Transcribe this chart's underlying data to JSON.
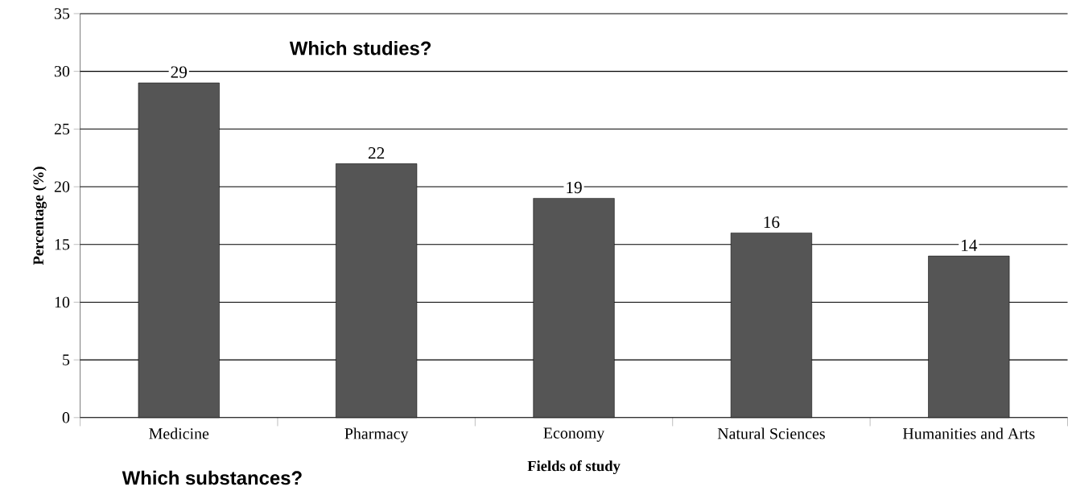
{
  "chart_data": {
    "type": "bar",
    "categories": [
      "Medicine",
      "Pharmacy",
      "Economy",
      "Natural Sciences",
      "Humanities and Arts"
    ],
    "values": [
      29,
      22,
      19,
      16,
      14
    ],
    "color": "#555555",
    "ylim": [
      0,
      35
    ],
    "yticks": [
      0,
      5,
      10,
      15,
      20,
      25,
      30,
      35
    ],
    "grid": "y",
    "data_labels": true,
    "xlabel": "Fields of study",
    "ylabel": "Percentage (%)",
    "annotations": [
      "Which studies?",
      "Which substances?"
    ]
  }
}
